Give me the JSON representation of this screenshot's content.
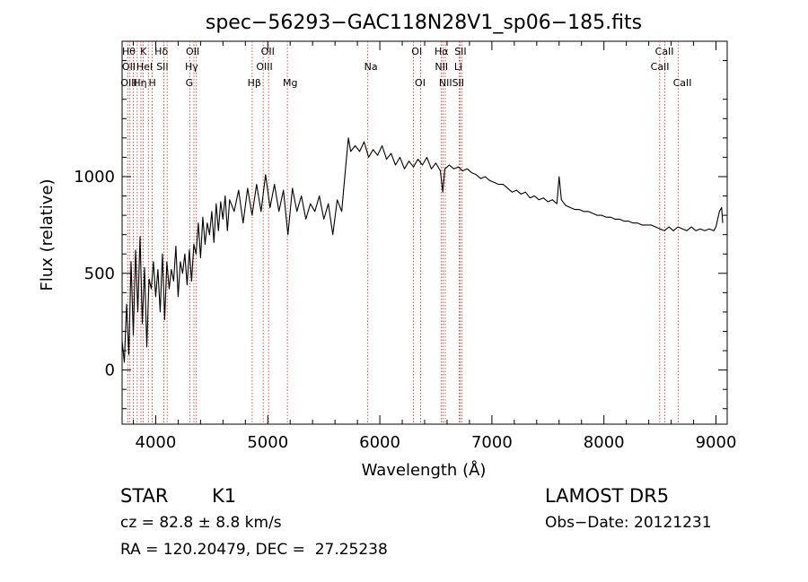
{
  "chart_data": {
    "type": "line",
    "title": "spec−56293−GAC118N28V1_sp06−185.fits",
    "xlabel": "Wavelength (Å)",
    "ylabel": "Flux (relative)",
    "xlim": [
      3700,
      9100
    ],
    "ylim": [
      -280,
      1700
    ],
    "x_ticks": [
      4000,
      5000,
      6000,
      7000,
      8000,
      9000
    ],
    "y_ticks": [
      0,
      500,
      1000
    ],
    "grid": false,
    "line_color": "#000000",
    "marker_color": "#c8281e",
    "series": [
      {
        "values": [
          [
            3700,
            150
          ],
          [
            3720,
            40
          ],
          [
            3740,
            340
          ],
          [
            3760,
            80
          ],
          [
            3780,
            560
          ],
          [
            3800,
            180
          ],
          [
            3820,
            620
          ],
          [
            3840,
            300
          ],
          [
            3860,
            690
          ],
          [
            3880,
            240
          ],
          [
            3900,
            530
          ],
          [
            3920,
            120
          ],
          [
            3940,
            470
          ],
          [
            3960,
            420
          ],
          [
            3980,
            560
          ],
          [
            4000,
            380
          ],
          [
            4020,
            520
          ],
          [
            4040,
            300
          ],
          [
            4060,
            600
          ],
          [
            4080,
            260
          ],
          [
            4100,
            560
          ],
          [
            4120,
            420
          ],
          [
            4140,
            520
          ],
          [
            4160,
            460
          ],
          [
            4180,
            640
          ],
          [
            4200,
            380
          ],
          [
            4220,
            560
          ],
          [
            4240,
            500
          ],
          [
            4260,
            600
          ],
          [
            4280,
            440
          ],
          [
            4300,
            620
          ],
          [
            4320,
            460
          ],
          [
            4340,
            650
          ],
          [
            4360,
            600
          ],
          [
            4380,
            760
          ],
          [
            4400,
            580
          ],
          [
            4420,
            790
          ],
          [
            4440,
            650
          ],
          [
            4460,
            760
          ],
          [
            4480,
            700
          ],
          [
            4500,
            820
          ],
          [
            4520,
            660
          ],
          [
            4540,
            860
          ],
          [
            4560,
            720
          ],
          [
            4580,
            870
          ],
          [
            4600,
            780
          ],
          [
            4620,
            900
          ],
          [
            4640,
            720
          ],
          [
            4660,
            880
          ],
          [
            4700,
            820
          ],
          [
            4740,
            930
          ],
          [
            4780,
            760
          ],
          [
            4820,
            940
          ],
          [
            4860,
            800
          ],
          [
            4900,
            960
          ],
          [
            4940,
            820
          ],
          [
            4980,
            1010
          ],
          [
            5020,
            840
          ],
          [
            5060,
            960
          ],
          [
            5100,
            820
          ],
          [
            5140,
            930
          ],
          [
            5180,
            700
          ],
          [
            5220,
            940
          ],
          [
            5260,
            820
          ],
          [
            5300,
            900
          ],
          [
            5340,
            780
          ],
          [
            5380,
            860
          ],
          [
            5420,
            820
          ],
          [
            5460,
            900
          ],
          [
            5500,
            780
          ],
          [
            5540,
            860
          ],
          [
            5580,
            700
          ],
          [
            5620,
            880
          ],
          [
            5660,
            820
          ],
          [
            5700,
            1080
          ],
          [
            5720,
            1200
          ],
          [
            5740,
            1130
          ],
          [
            5780,
            1160
          ],
          [
            5820,
            1130
          ],
          [
            5860,
            1180
          ],
          [
            5900,
            1100
          ],
          [
            5940,
            1140
          ],
          [
            5980,
            1110
          ],
          [
            6020,
            1160
          ],
          [
            6060,
            1090
          ],
          [
            6100,
            1120
          ],
          [
            6140,
            1060
          ],
          [
            6180,
            1100
          ],
          [
            6220,
            1040
          ],
          [
            6260,
            1080
          ],
          [
            6300,
            1050
          ],
          [
            6340,
            1090
          ],
          [
            6380,
            1060
          ],
          [
            6420,
            1100
          ],
          [
            6460,
            1040
          ],
          [
            6500,
            1070
          ],
          [
            6540,
            1030
          ],
          [
            6562,
            920
          ],
          [
            6580,
            1040
          ],
          [
            6620,
            1060
          ],
          [
            6660,
            1040
          ],
          [
            6700,
            1050
          ],
          [
            6740,
            1030
          ],
          [
            6780,
            1040
          ],
          [
            6820,
            1020
          ],
          [
            6860,
            1010
          ],
          [
            6900,
            990
          ],
          [
            6940,
            1000
          ],
          [
            6980,
            980
          ],
          [
            7020,
            970
          ],
          [
            7060,
            960
          ],
          [
            7100,
            960
          ],
          [
            7140,
            940
          ],
          [
            7180,
            920
          ],
          [
            7220,
            930
          ],
          [
            7260,
            910
          ],
          [
            7300,
            920
          ],
          [
            7340,
            890
          ],
          [
            7380,
            900
          ],
          [
            7420,
            880
          ],
          [
            7460,
            890
          ],
          [
            7500,
            870
          ],
          [
            7540,
            880
          ],
          [
            7580,
            860
          ],
          [
            7600,
            1000
          ],
          [
            7620,
            880
          ],
          [
            7660,
            850
          ],
          [
            7700,
            840
          ],
          [
            7740,
            830
          ],
          [
            7780,
            830
          ],
          [
            7820,
            820
          ],
          [
            7860,
            820
          ],
          [
            7900,
            810
          ],
          [
            7940,
            800
          ],
          [
            7980,
            800
          ],
          [
            8020,
            790
          ],
          [
            8060,
            790
          ],
          [
            8100,
            780
          ],
          [
            8140,
            780
          ],
          [
            8180,
            770
          ],
          [
            8220,
            770
          ],
          [
            8260,
            760
          ],
          [
            8300,
            760
          ],
          [
            8340,
            750
          ],
          [
            8380,
            750
          ],
          [
            8420,
            750
          ],
          [
            8460,
            740
          ],
          [
            8500,
            730
          ],
          [
            8540,
            720
          ],
          [
            8580,
            740
          ],
          [
            8620,
            720
          ],
          [
            8660,
            740
          ],
          [
            8700,
            730
          ],
          [
            8740,
            720
          ],
          [
            8780,
            740
          ],
          [
            8820,
            720
          ],
          [
            8860,
            730
          ],
          [
            8900,
            720
          ],
          [
            8940,
            730
          ],
          [
            8980,
            720
          ],
          [
            9000,
            740
          ],
          [
            9030,
            820
          ],
          [
            9050,
            840
          ],
          [
            9060,
            760
          ]
        ]
      }
    ],
    "line_markers": [
      {
        "wavelength": 3750,
        "labels": [
          "Hθ",
          "OII"
        ]
      },
      {
        "wavelength": 3770,
        "labels": [
          "OII"
        ]
      },
      {
        "wavelength": 3800,
        "labels": [
          "OII"
        ]
      },
      {
        "wavelength": 3835,
        "labels": [
          "K"
        ]
      },
      {
        "wavelength": 3868,
        "labels": [
          "HeI"
        ]
      },
      {
        "wavelength": 3889,
        "labels": [
          "Hη"
        ]
      },
      {
        "wavelength": 3934,
        "labels": [
          "K"
        ]
      },
      {
        "wavelength": 3969,
        "labels": [
          "H"
        ]
      },
      {
        "wavelength": 4072,
        "labels": [
          "SII"
        ]
      },
      {
        "wavelength": 4102,
        "labels": [
          "Hδ"
        ]
      },
      {
        "wavelength": 4304,
        "labels": [
          "G"
        ]
      },
      {
        "wavelength": 4341,
        "labels": [
          "Hγ"
        ]
      },
      {
        "wavelength": 4363,
        "labels": [
          "OIII"
        ]
      },
      {
        "wavelength": 4861,
        "labels": [
          "Hβ"
        ]
      },
      {
        "wavelength": 4959,
        "labels": [
          "OIII"
        ]
      },
      {
        "wavelength": 5007,
        "labels": [
          "OIII"
        ]
      },
      {
        "wavelength": 5175,
        "labels": [
          "Mg"
        ]
      },
      {
        "wavelength": 5893,
        "labels": [
          "Na"
        ]
      },
      {
        "wavelength": 6300,
        "labels": [
          "OI"
        ]
      },
      {
        "wavelength": 6364,
        "labels": [
          "OI"
        ]
      },
      {
        "wavelength": 6548,
        "labels": [
          "NII"
        ]
      },
      {
        "wavelength": 6563,
        "labels": [
          "Hα"
        ]
      },
      {
        "wavelength": 6584,
        "labels": [
          "NII"
        ]
      },
      {
        "wavelength": 6707,
        "labels": [
          "Li"
        ]
      },
      {
        "wavelength": 6717,
        "labels": [
          "SII"
        ]
      },
      {
        "wavelength": 6731,
        "labels": [
          "SII"
        ]
      },
      {
        "wavelength": 8498,
        "labels": [
          "CaII"
        ]
      },
      {
        "wavelength": 8542,
        "labels": [
          "CaII"
        ]
      },
      {
        "wavelength": 8662,
        "labels": [
          "CaII"
        ]
      }
    ],
    "marker_labels": [
      {
        "text": "Hθ",
        "row": 0,
        "wavelength": 3760
      },
      {
        "text": "K",
        "row": 0,
        "wavelength": 3890
      },
      {
        "text": "Hδ",
        "row": 0,
        "wavelength": 4050
      },
      {
        "text": "OII",
        "row": 0,
        "wavelength": 4330
      },
      {
        "text": "OII",
        "row": 0,
        "wavelength": 5000
      },
      {
        "text": "OI",
        "row": 0,
        "wavelength": 6330
      },
      {
        "text": "Hα",
        "row": 0,
        "wavelength": 6550
      },
      {
        "text": "SII",
        "row": 0,
        "wavelength": 6720
      },
      {
        "text": "CaII",
        "row": 0,
        "wavelength": 8540
      },
      {
        "text": "OII",
        "row": 1,
        "wavelength": 3760
      },
      {
        "text": "HeI",
        "row": 1,
        "wavelength": 3900
      },
      {
        "text": "SII",
        "row": 1,
        "wavelength": 4060
      },
      {
        "text": "Hγ",
        "row": 1,
        "wavelength": 4320
      },
      {
        "text": "OIII",
        "row": 1,
        "wavelength": 4970
      },
      {
        "text": "Na",
        "row": 1,
        "wavelength": 5920
      },
      {
        "text": "NII",
        "row": 1,
        "wavelength": 6550
      },
      {
        "text": "Li",
        "row": 1,
        "wavelength": 6700
      },
      {
        "text": "CaII",
        "row": 1,
        "wavelength": 8500
      },
      {
        "text": "OIII",
        "row": 2,
        "wavelength": 3760
      },
      {
        "text": "Hη",
        "row": 2,
        "wavelength": 3860
      },
      {
        "text": "H",
        "row": 2,
        "wavelength": 3970
      },
      {
        "text": "G",
        "row": 2,
        "wavelength": 4300
      },
      {
        "text": "Hβ",
        "row": 2,
        "wavelength": 4880
      },
      {
        "text": "Mg",
        "row": 2,
        "wavelength": 5200
      },
      {
        "text": "OI",
        "row": 2,
        "wavelength": 6360
      },
      {
        "text": "NIISII",
        "row": 2,
        "wavelength": 6640
      },
      {
        "text": "CaII",
        "row": 2,
        "wavelength": 8700
      }
    ]
  },
  "info": {
    "object_class": "STAR",
    "subclass": "K1",
    "survey": "LAMOST DR5",
    "redshift": "cz = 82.8 ± 8.8 km/s",
    "obs_date": "Obs−Date: 20121231",
    "coords": "RA = 120.20479, DEC =  27.25238"
  }
}
